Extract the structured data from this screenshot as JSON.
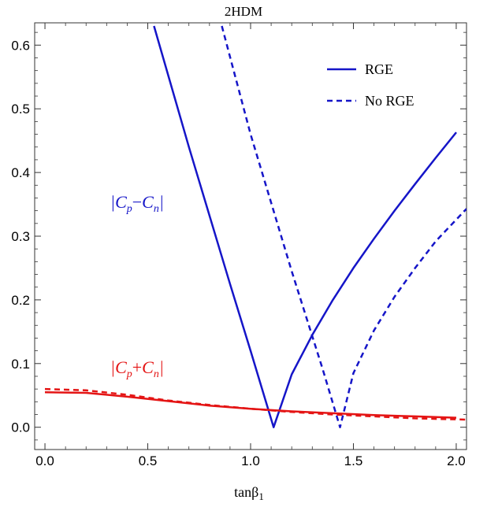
{
  "chart_data": {
    "type": "line",
    "title": "2HDM",
    "xlabel": "tanβ",
    "xlabel_sub": "1",
    "ylabel": "",
    "xlim": [
      -0.05,
      2.05
    ],
    "ylim": [
      -0.035,
      0.635
    ],
    "xticks": [
      0.0,
      0.5,
      1.0,
      1.5,
      2.0
    ],
    "xtick_labels": [
      "0.0",
      "0.5",
      "1.0",
      "1.5",
      "2.0"
    ],
    "yticks": [
      0.0,
      0.1,
      0.2,
      0.3,
      0.4,
      0.5,
      0.6
    ],
    "ytick_labels": [
      "0.0",
      "0.1",
      "0.2",
      "0.3",
      "0.4",
      "0.5",
      "0.6"
    ],
    "grid": false,
    "legend_position": "top-right",
    "legend": [
      {
        "label": "RGE",
        "style": "solid",
        "color": "#1515c8"
      },
      {
        "label": "No RGE",
        "style": "dashed",
        "color": "#1515c8"
      }
    ],
    "series": [
      {
        "group": "Cp-Cn",
        "style": "solid",
        "color": "#1515c8",
        "x": [
          0.53,
          0.7,
          0.9,
          1.0,
          1.112,
          1.2,
          1.3,
          1.4,
          1.5,
          1.6,
          1.7,
          1.8,
          1.9,
          2.0
        ],
        "y": [
          0.63,
          0.44,
          0.225,
          0.12,
          0.0,
          0.083,
          0.145,
          0.2,
          0.25,
          0.296,
          0.34,
          0.382,
          0.423,
          0.463
        ]
      },
      {
        "group": "Cp-Cn",
        "style": "dashed",
        "color": "#1515c8",
        "x": [
          0.86,
          1.0,
          1.2,
          1.35,
          1.435,
          1.5,
          1.6,
          1.7,
          1.8,
          1.9,
          2.05
        ],
        "y": [
          0.63,
          0.46,
          0.245,
          0.092,
          0.0,
          0.085,
          0.152,
          0.205,
          0.25,
          0.292,
          0.343
        ]
      },
      {
        "group": "Cp+Cn",
        "style": "solid",
        "color": "#e41414",
        "x": [
          0.0,
          0.2,
          0.4,
          0.6,
          0.8,
          1.0,
          1.2,
          1.4,
          1.6,
          1.8,
          2.0
        ],
        "y": [
          0.055,
          0.054,
          0.048,
          0.041,
          0.034,
          0.029,
          0.025,
          0.022,
          0.019,
          0.017,
          0.015
        ]
      },
      {
        "group": "Cp+Cn",
        "style": "dashed",
        "color": "#e41414",
        "x": [
          0.0,
          0.2,
          0.4,
          0.6,
          0.8,
          1.0,
          1.2,
          1.4,
          1.6,
          1.8,
          2.05
        ],
        "y": [
          0.06,
          0.058,
          0.051,
          0.042,
          0.035,
          0.029,
          0.024,
          0.02,
          0.017,
          0.014,
          0.012
        ]
      }
    ],
    "annotations": [
      {
        "text_parts": [
          "|",
          "C",
          "p",
          "−",
          "C",
          "n",
          "|"
        ],
        "color": "#1515c8",
        "x": 0.45,
        "y": 0.345
      },
      {
        "text_parts": [
          "|",
          "C",
          "p",
          "+",
          "C",
          "n",
          "|"
        ],
        "color": "#e41414",
        "x": 0.45,
        "y": 0.087
      }
    ]
  }
}
